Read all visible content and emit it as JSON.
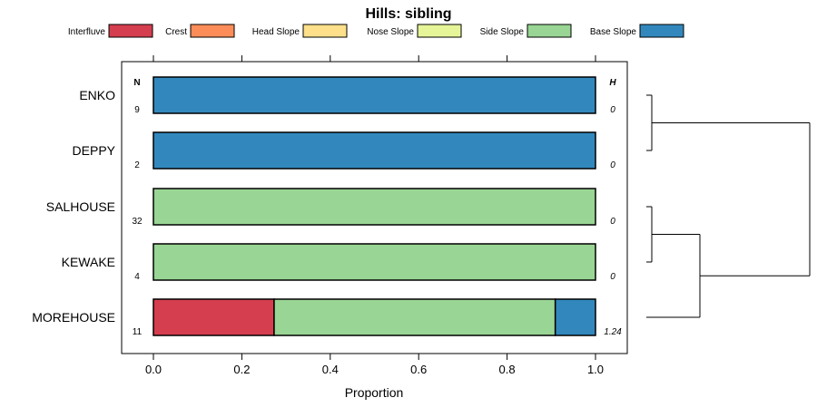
{
  "chart_data": {
    "type": "bar",
    "orientation": "horizontal",
    "stacked": true,
    "title": "Hills: sibling",
    "xlabel": "Proportion",
    "ylabel": "",
    "xlim": [
      0,
      1
    ],
    "x_ticks": [
      0.0,
      0.2,
      0.4,
      0.6,
      0.8,
      1.0
    ],
    "x_tick_labels": [
      "0.0",
      "0.2",
      "0.4",
      "0.6",
      "0.8",
      "1.0"
    ],
    "n_header": "N",
    "h_header": "H",
    "legend": [
      {
        "name": "Interfluve",
        "color": "#d53e4f"
      },
      {
        "name": "Crest",
        "color": "#fc8d59"
      },
      {
        "name": "Head Slope",
        "color": "#fee08b"
      },
      {
        "name": "Nose Slope",
        "color": "#e6f598"
      },
      {
        "name": "Side Slope",
        "color": "#99d594"
      },
      {
        "name": "Base Slope",
        "color": "#3288bd"
      }
    ],
    "categories": [
      "ENKO",
      "DEPPY",
      "SALHOUSE",
      "KEWAKE",
      "MOREHOUSE"
    ],
    "n_values": [
      "9",
      "2",
      "32",
      "4",
      "11"
    ],
    "h_values": [
      "0",
      "0",
      "0",
      "0",
      "1.24"
    ],
    "series": [
      {
        "name": "Interfluve",
        "values": [
          0,
          0,
          0,
          0,
          0.273
        ]
      },
      {
        "name": "Crest",
        "values": [
          0,
          0,
          0,
          0,
          0
        ]
      },
      {
        "name": "Head Slope",
        "values": [
          0,
          0,
          0,
          0,
          0
        ]
      },
      {
        "name": "Nose Slope",
        "values": [
          0,
          0,
          0,
          0,
          0
        ]
      },
      {
        "name": "Side Slope",
        "values": [
          0,
          0,
          1,
          1,
          0.636
        ]
      },
      {
        "name": "Base Slope",
        "values": [
          1,
          1,
          0,
          0,
          0.091
        ]
      }
    ],
    "dendrogram": {
      "merges": [
        [
          "ENKO",
          "DEPPY"
        ],
        [
          "SALHOUSE",
          "KEWAKE"
        ],
        [
          "SALHOUSE+KEWAKE",
          "MOREHOUSE"
        ],
        [
          "ENKO+DEPPY",
          "SALHOUSE+KEWAKE+MOREHOUSE"
        ]
      ]
    }
  }
}
